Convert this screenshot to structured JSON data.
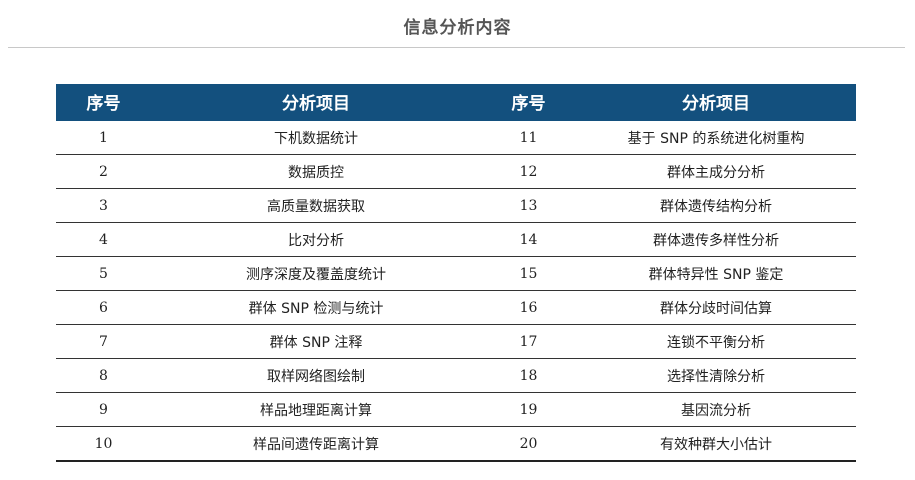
{
  "page": {
    "title": "信息分析内容"
  },
  "table": {
    "headers": [
      "序号",
      "分析项目",
      "序号",
      "分析项目"
    ],
    "rows": [
      {
        "no1": "1",
        "item1": "下机数据统计",
        "no2": "11",
        "item2": "基于 SNP 的系统进化树重构"
      },
      {
        "no1": "2",
        "item1": "数据质控",
        "no2": "12",
        "item2": "群体主成分分析"
      },
      {
        "no1": "3",
        "item1": "高质量数据获取",
        "no2": "13",
        "item2": "群体遗传结构分析"
      },
      {
        "no1": "4",
        "item1": "比对分析",
        "no2": "14",
        "item2": "群体遗传多样性分析"
      },
      {
        "no1": "5",
        "item1": "测序深度及覆盖度统计",
        "no2": "15",
        "item2": "群体特异性 SNP 鉴定"
      },
      {
        "no1": "6",
        "item1": "群体 SNP 检测与统计",
        "no2": "16",
        "item2": "群体分歧时间估算"
      },
      {
        "no1": "7",
        "item1": "群体 SNP 注释",
        "no2": "17",
        "item2": "连锁不平衡分析"
      },
      {
        "no1": "8",
        "item1": "取样网络图绘制",
        "no2": "18",
        "item2": "选择性清除分析"
      },
      {
        "no1": "9",
        "item1": "样品地理距离计算",
        "no2": "19",
        "item2": "基因流分析"
      },
      {
        "no1": "10",
        "item1": "样品间遗传距离计算",
        "no2": "20",
        "item2": "有效种群大小估计"
      }
    ]
  },
  "colors": {
    "header_bg": "#13507e",
    "header_text": "#ffffff",
    "title_text": "#555555"
  }
}
